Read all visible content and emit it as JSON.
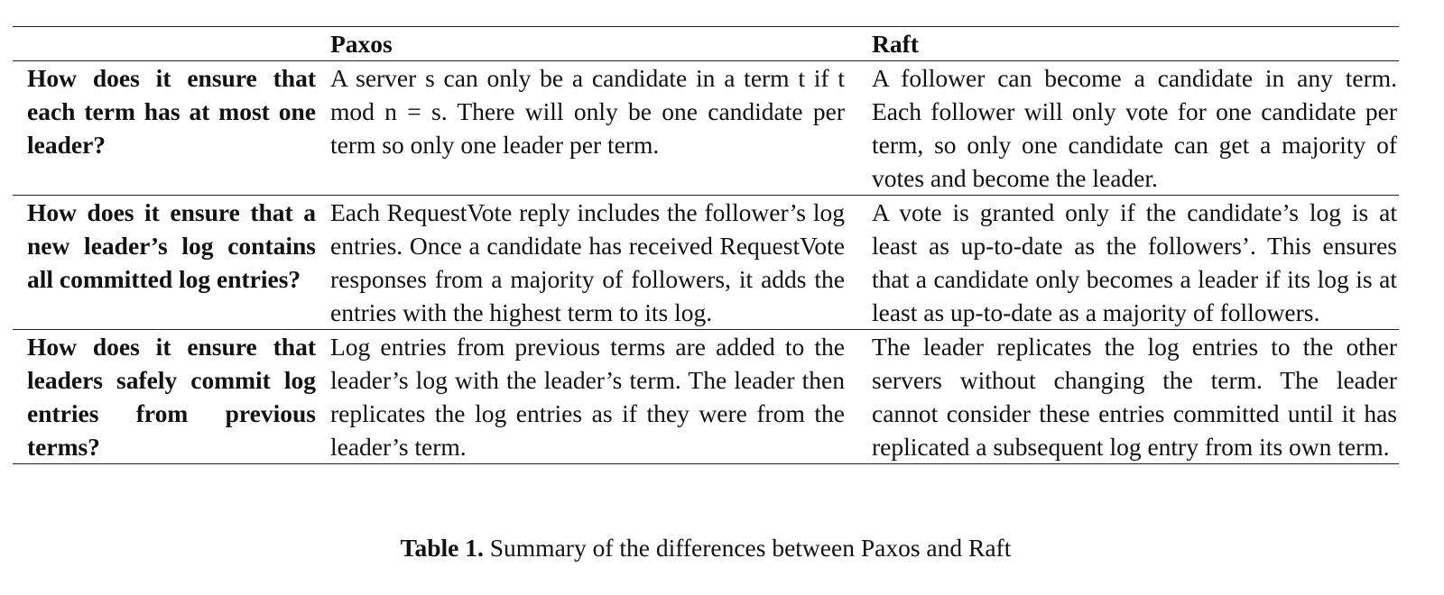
{
  "table": {
    "headers": [
      "",
      "Paxos",
      "Raft"
    ],
    "rows": [
      {
        "question": "How does it ensure that each term has at most one leader?",
        "paxos": "A server s can only be a candidate in a term t if t mod n = s. There will only be one candidate per term so only one leader per term.",
        "raft": "A follower can become a candidate in any term. Each follower will only vote for one candidate per term, so only one candidate can get a majority of votes and become the leader."
      },
      {
        "question": "How does it ensure that a new leader’s log contains all committed log entries?",
        "paxos": "Each RequestVote reply includes the follower’s log entries. Once a candidate has received RequestVote responses from a majority of followers, it adds the entries with the highest term to its log.",
        "raft": "A vote is granted only if the candidate’s log is at least as up-to-date as the followers’. This ensures that a candidate only becomes a leader if its log is at least as up-to-date as a majority of followers."
      },
      {
        "question": "How does it ensure that leaders safely commit log entries from previous terms?",
        "paxos": "Log entries from previous terms are added to the leader’s log with the leader’s term. The leader then replicates the log entries as if they were from the leader’s term.",
        "raft": "The leader replicates the log entries to the other servers without changing the term. The leader cannot consider these entries committed until it has replicated a subsequent log entry from its own term."
      }
    ]
  },
  "caption": {
    "label": "Table 1.",
    "text": "Summary of the differences between Paxos and Raft"
  }
}
